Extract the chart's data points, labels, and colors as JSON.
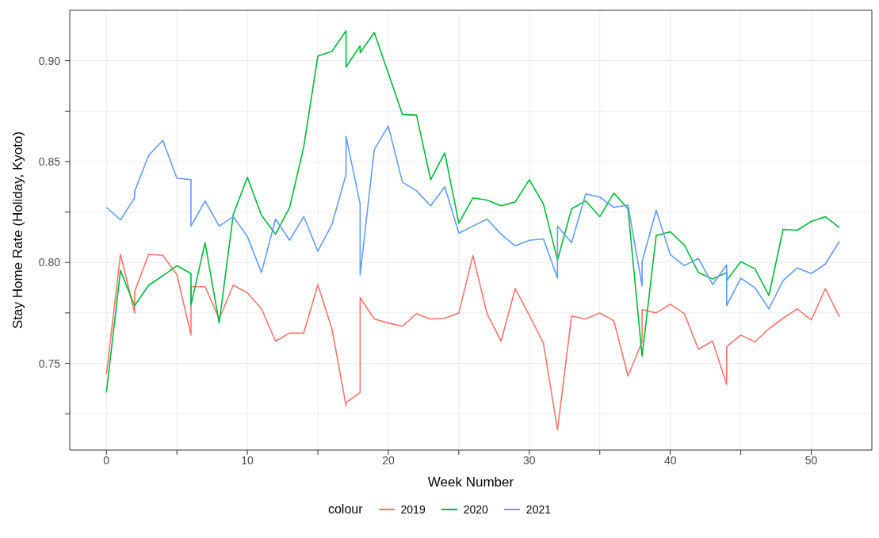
{
  "chart_data": {
    "type": "line",
    "xlabel": "Week Number",
    "ylabel": "Stay Home Rate (Holiday, Kyoto)",
    "legend_title": "colour",
    "legend": "bottom",
    "grid": true,
    "marker": "none",
    "line_style": "solid",
    "xlim": [
      -2.6,
      54.3
    ],
    "xticks": [
      0,
      {
        "value": 5,
        "label": null
      },
      10,
      {
        "value": 15,
        "label": null
      },
      20,
      {
        "value": 25,
        "label": null
      },
      30,
      {
        "value": 35,
        "label": null
      },
      40,
      {
        "value": 45,
        "label": null
      },
      50
    ],
    "ylim": [
      0.707,
      0.925
    ],
    "yticks": [
      {
        "value": 0.725,
        "label": null
      },
      {
        "value": 0.75,
        "label": "0.75"
      },
      {
        "value": 0.775,
        "label": null
      },
      {
        "value": 0.8,
        "label": "0.80"
      },
      {
        "value": 0.825,
        "label": null
      },
      {
        "value": 0.85,
        "label": "0.85"
      },
      {
        "value": 0.875,
        "label": null
      },
      {
        "value": 0.9,
        "label": "0.90"
      }
    ],
    "series": [
      {
        "name": "2019",
        "color": "#f8766d",
        "x": [
          0,
          1,
          2,
          2,
          3,
          4,
          5,
          6,
          6,
          7,
          8,
          9,
          10,
          11,
          12,
          13,
          14,
          15,
          16,
          17,
          17,
          18,
          18,
          19,
          20,
          21,
          22,
          23,
          24,
          25,
          26,
          27,
          28,
          29,
          30,
          31,
          32,
          33,
          34,
          35,
          36,
          37,
          38,
          38,
          39,
          40,
          41,
          42,
          43,
          44,
          44,
          45,
          46,
          47,
          48,
          49,
          50,
          51,
          52
        ],
        "values": [
          0.7445,
          0.804,
          0.775,
          0.7855,
          0.804,
          0.8035,
          0.794,
          0.764,
          0.788,
          0.788,
          0.772,
          0.7887,
          0.785,
          0.777,
          0.761,
          0.765,
          0.765,
          0.789,
          0.767,
          0.729,
          0.7305,
          0.7355,
          0.7825,
          0.772,
          0.77,
          0.7684,
          0.7746,
          0.7719,
          0.7723,
          0.775,
          0.8035,
          0.7746,
          0.761,
          0.787,
          0.7738,
          0.76,
          0.717,
          0.7734,
          0.772,
          0.775,
          0.771,
          0.7437,
          0.7606,
          0.7766,
          0.775,
          0.7793,
          0.7746,
          0.757,
          0.761,
          0.7395,
          0.7582,
          0.764,
          0.7606,
          0.7672,
          0.7723,
          0.777,
          0.7715,
          0.787,
          0.773
        ]
      },
      {
        "name": "2020",
        "color": "#00ba38",
        "x": [
          0,
          1,
          2,
          3,
          4,
          5,
          6,
          6,
          7,
          8,
          9,
          10,
          11,
          12,
          13,
          14,
          15,
          16,
          17,
          17,
          18,
          18,
          19,
          20,
          21,
          22,
          23,
          24,
          25,
          26,
          27,
          28,
          29,
          30,
          31,
          32,
          33,
          34,
          35,
          36,
          37,
          38,
          39,
          40,
          41,
          42,
          43,
          44,
          44,
          45,
          46,
          47,
          48,
          49,
          50,
          51,
          52
        ],
        "values": [
          0.7355,
          0.796,
          0.7785,
          0.7887,
          0.7934,
          0.7984,
          0.7945,
          0.779,
          0.8098,
          0.77,
          0.8238,
          0.8422,
          0.8234,
          0.814,
          0.8273,
          0.8574,
          0.9023,
          0.9047,
          0.9148,
          0.8969,
          0.9074,
          0.9039,
          0.914,
          0.8938,
          0.8734,
          0.873,
          0.841,
          0.8543,
          0.8195,
          0.832,
          0.8309,
          0.8281,
          0.83,
          0.841,
          0.829,
          0.8012,
          0.8266,
          0.8305,
          0.8227,
          0.8344,
          0.8266,
          0.7535,
          0.8133,
          0.8152,
          0.8086,
          0.795,
          0.7918,
          0.795,
          0.791,
          0.8004,
          0.7969,
          0.7836,
          0.8164,
          0.816,
          0.8203,
          0.8227,
          0.8172
        ]
      },
      {
        "name": "2021",
        "color": "#619cff",
        "x": [
          0,
          1,
          2,
          2,
          3,
          4,
          5,
          6,
          6,
          7,
          8,
          9,
          10,
          11,
          12,
          13,
          14,
          15,
          16,
          17,
          17,
          18,
          18,
          19,
          20,
          21,
          22,
          23,
          24,
          25,
          26,
          27,
          28,
          29,
          30,
          31,
          32,
          32,
          33,
          34,
          35,
          36,
          37,
          38,
          38,
          39,
          40,
          41,
          42,
          43,
          44,
          44,
          45,
          46,
          47,
          48,
          49,
          50,
          51,
          52
        ],
        "values": [
          0.8273,
          0.8211,
          0.832,
          0.8352,
          0.8531,
          0.8605,
          0.8418,
          0.841,
          0.818,
          0.8305,
          0.818,
          0.8227,
          0.8129,
          0.795,
          0.8215,
          0.811,
          0.8227,
          0.8055,
          0.8188,
          0.8437,
          0.8625,
          0.829,
          0.7937,
          0.8559,
          0.8676,
          0.8398,
          0.8355,
          0.8281,
          0.8375,
          0.8145,
          0.818,
          0.8215,
          0.814,
          0.8082,
          0.811,
          0.8117,
          0.7922,
          0.818,
          0.8098,
          0.834,
          0.8324,
          0.8273,
          0.8285,
          0.7883,
          0.8004,
          0.8258,
          0.8039,
          0.7984,
          0.802,
          0.789,
          0.7988,
          0.7785,
          0.7922,
          0.7875,
          0.777,
          0.791,
          0.7973,
          0.7945,
          0.7992,
          0.8105
        ]
      }
    ]
  }
}
